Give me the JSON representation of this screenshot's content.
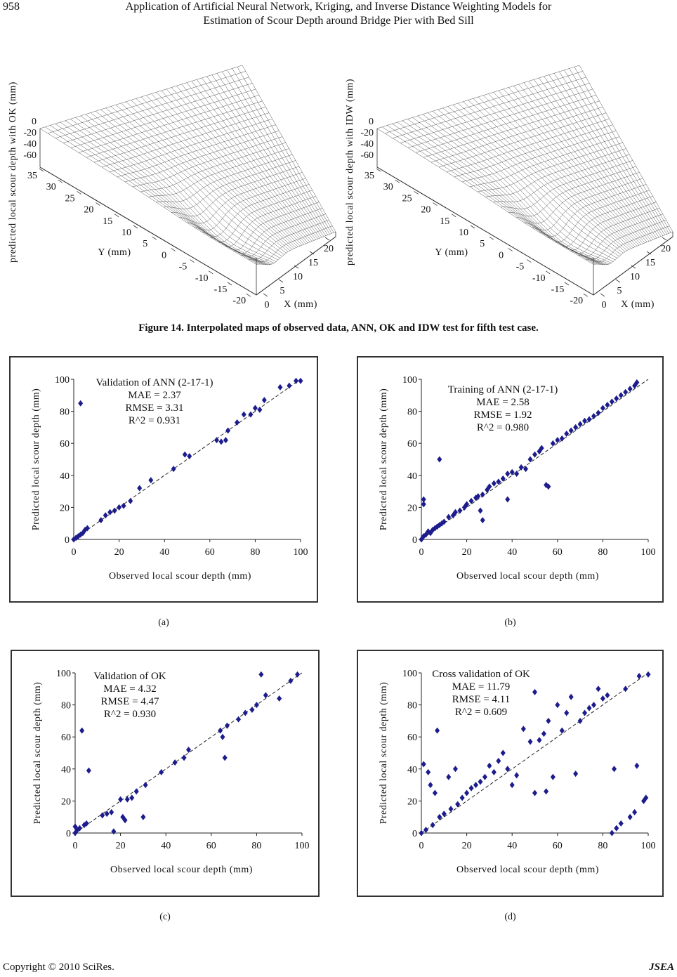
{
  "header": {
    "page_number": "958",
    "title_line1": "Application of Artificial Neural Network, Kriging, and Inverse Distance Weighting Models for",
    "title_line2": "Estimation of Scour Depth around Bridge Pier with Bed Sill"
  },
  "figure14": {
    "panels": [
      {
        "z_label": "predicted local scour depth with OK (mm)",
        "z_ticks": [
          "0",
          "-20",
          "-40",
          "-60"
        ],
        "y_label": "Y (mm)",
        "y_ticks": [
          "35",
          "30",
          "25",
          "20",
          "15",
          "10",
          "5",
          "0",
          "-5",
          "-10",
          "-15",
          "-20"
        ],
        "x_label": "X (mm)",
        "x_ticks": [
          "0",
          "5",
          "10",
          "15",
          "20"
        ]
      },
      {
        "z_label": "predicted local scour depth with IDW (mm)",
        "z_ticks": [
          "0",
          "-20",
          "-40",
          "-60"
        ],
        "y_label": "Y (mm)",
        "y_ticks": [
          "35",
          "30",
          "25",
          "20",
          "15",
          "10",
          "5",
          "0",
          "-5",
          "-10",
          "-15",
          "-20"
        ],
        "x_label": "X (mm)",
        "x_ticks": [
          "0",
          "5",
          "10",
          "15",
          "20"
        ]
      }
    ],
    "caption": "Figure 14. Interpolated maps of observed data, ANN, OK and IDW test for fifth test case."
  },
  "chart_data": [
    {
      "type": "scatter",
      "subcaption": "(a)",
      "annotations": [
        "Validation of ANN (2-17-1)",
        "MAE = 2.37",
        "RMSE = 3.31",
        "R^2 = 0.931"
      ],
      "xlabel": "Observed local scour depth (mm)",
      "ylabel": "Predicted local scour depth (mm)",
      "color": "#1c1c8c",
      "xlim": [
        0,
        100
      ],
      "ylim": [
        0,
        100
      ],
      "xticks": [
        0,
        20,
        40,
        60,
        80,
        100
      ],
      "yticks": [
        0,
        20,
        40,
        60,
        80,
        100
      ],
      "x": [
        0,
        1,
        2,
        3,
        4,
        5,
        6,
        3,
        12,
        14,
        16,
        18,
        20,
        22,
        25,
        29,
        34,
        44,
        49,
        51,
        63,
        65,
        67,
        68,
        72,
        75,
        78,
        80,
        82,
        84,
        91,
        95,
        98,
        100
      ],
      "values": [
        0,
        1,
        2,
        3,
        4,
        6,
        7,
        85,
        12,
        15,
        17,
        18,
        20,
        21,
        24,
        32,
        37,
        44,
        53,
        52,
        62,
        61,
        62,
        68,
        73,
        78,
        78,
        82,
        81,
        87,
        95,
        96,
        99,
        99
      ]
    },
    {
      "type": "scatter",
      "subcaption": "(b)",
      "annotations": [
        "Training of ANN (2-17-1)",
        "MAE = 2.58",
        "RMSE = 1.92",
        "R^2 = 0.980"
      ],
      "xlabel": "Observed local scour depth (mm)",
      "ylabel": "Predicted local scour depth (mm)",
      "color": "#1c1c8c",
      "xlim": [
        0,
        100
      ],
      "ylim": [
        0,
        100
      ],
      "xticks": [
        0,
        20,
        40,
        60,
        80,
        100
      ],
      "yticks": [
        0,
        20,
        40,
        60,
        80,
        100
      ],
      "x": [
        0,
        1,
        2,
        3,
        4,
        5,
        6,
        7,
        8,
        9,
        10,
        1,
        1,
        8,
        12,
        14,
        15,
        17,
        19,
        20,
        22,
        24,
        25,
        27,
        29,
        30,
        32,
        34,
        36,
        38,
        40,
        42,
        44,
        46,
        48,
        50,
        52,
        53,
        55,
        56,
        58,
        60,
        62,
        64,
        66,
        68,
        70,
        72,
        74,
        76,
        78,
        80,
        82,
        84,
        86,
        88,
        90,
        92,
        94,
        95,
        38,
        26,
        27
      ],
      "values": [
        0,
        2,
        3,
        5,
        4,
        6,
        7,
        8,
        9,
        10,
        11,
        22,
        25,
        50,
        14,
        15,
        17,
        18,
        20,
        22,
        24,
        26,
        27,
        28,
        31,
        33,
        35,
        36,
        38,
        41,
        42,
        41,
        45,
        44,
        50,
        53,
        55,
        57,
        34,
        33,
        60,
        62,
        63,
        66,
        68,
        70,
        72,
        74,
        75,
        77,
        79,
        82,
        84,
        86,
        88,
        90,
        92,
        94,
        96,
        98,
        25,
        18,
        12
      ]
    },
    {
      "type": "scatter",
      "subcaption": "(c)",
      "annotations": [
        "Validation of OK",
        "MAE = 4.32",
        "RMSE = 4.47",
        "R^2 = 0.930"
      ],
      "xlabel": "Observed local scour depth (mm)",
      "ylabel": "Predicted local scour depth (mm)",
      "color": "#1c1c8c",
      "xlim": [
        0,
        100
      ],
      "ylim": [
        0,
        100
      ],
      "xticks": [
        0,
        20,
        40,
        60,
        80,
        100
      ],
      "yticks": [
        0,
        20,
        40,
        60,
        80,
        100
      ],
      "x": [
        0,
        0,
        1,
        2,
        3,
        4,
        5,
        6,
        12,
        14,
        16,
        17,
        20,
        21,
        22,
        23,
        25,
        27,
        30,
        31,
        38,
        44,
        48,
        50,
        64,
        65,
        66,
        67,
        72,
        75,
        78,
        80,
        82,
        84,
        90,
        95,
        98
      ],
      "values": [
        0,
        4,
        2,
        3,
        64,
        5,
        6,
        39,
        11,
        12,
        13,
        1,
        21,
        10,
        8,
        21,
        22,
        26,
        10,
        30,
        38,
        44,
        47,
        52,
        64,
        60,
        47,
        67,
        71,
        75,
        77,
        80,
        99,
        86,
        84,
        95,
        99
      ]
    },
    {
      "type": "scatter",
      "subcaption": "(d)",
      "annotations": [
        "Cross validation of OK",
        "MAE = 11.79",
        "RMSE = 4.11",
        "R^2 = 0.609"
      ],
      "xlabel": "Observed local scour depth (mm)",
      "ylabel": "Predicted local scour depth (mm)",
      "color": "#1c1c8c",
      "xlim": [
        0,
        100
      ],
      "ylim": [
        0,
        100
      ],
      "xticks": [
        0,
        20,
        40,
        60,
        80,
        100
      ],
      "yticks": [
        0,
        20,
        40,
        60,
        80,
        100
      ],
      "x": [
        0,
        1,
        2,
        3,
        4,
        5,
        6,
        7,
        8,
        10,
        12,
        13,
        15,
        16,
        18,
        20,
        22,
        24,
        26,
        28,
        30,
        32,
        34,
        36,
        38,
        40,
        42,
        45,
        48,
        50,
        50,
        52,
        54,
        55,
        56,
        58,
        60,
        62,
        64,
        66,
        68,
        70,
        72,
        74,
        76,
        78,
        80,
        82,
        84,
        85,
        86,
        88,
        90,
        92,
        94,
        95,
        96,
        98,
        99,
        100
      ],
      "values": [
        0,
        43,
        2,
        38,
        30,
        5,
        25,
        64,
        10,
        12,
        35,
        15,
        40,
        18,
        22,
        25,
        28,
        30,
        32,
        35,
        42,
        38,
        45,
        50,
        40,
        30,
        36,
        65,
        57,
        25,
        88,
        58,
        62,
        26,
        70,
        35,
        80,
        64,
        75,
        85,
        37,
        70,
        75,
        78,
        80,
        90,
        84,
        86,
        0,
        40,
        3,
        6,
        90,
        10,
        13,
        42,
        98,
        20,
        22,
        99
      ]
    }
  ],
  "footer": {
    "copyright": "Copyright © 2010 SciRes.",
    "journal": "JSEA"
  }
}
